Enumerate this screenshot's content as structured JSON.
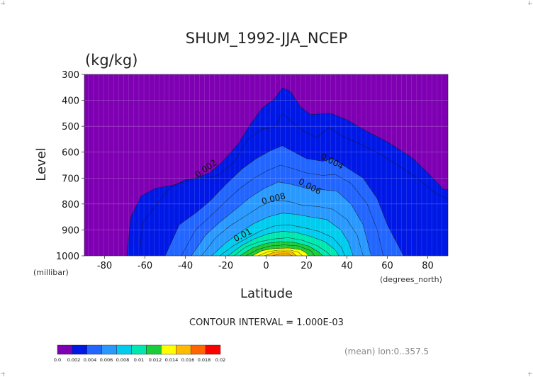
{
  "chart_data": {
    "type": "contour",
    "title": "SHUM_1992-JJA_NCEP",
    "units": "(kg/kg)",
    "xlabel": "Latitude",
    "ylabel": "Level",
    "x_unit_label": "(degrees_north)",
    "y_unit_label": "(millibar)",
    "xlim": [
      -90,
      90
    ],
    "ylim": [
      1000,
      300
    ],
    "x_ticks": [
      "-80",
      "-60",
      "-40",
      "-20",
      "0",
      "20",
      "40",
      "60",
      "80"
    ],
    "y_ticks": [
      "300",
      "400",
      "500",
      "600",
      "700",
      "800",
      "900",
      "1000"
    ],
    "contour_interval_text": "CONTOUR INTERVAL = 1.000E-03",
    "mean_note": "(mean) lon:0..357.5",
    "contour_labels": [
      "0.002",
      "0.004",
      "0.006",
      "0.008",
      "0.01"
    ],
    "colorbar": {
      "tick_labels": [
        "0.0",
        "0.002",
        "0.004",
        "0.006",
        "0.008",
        "0.01",
        "0.012",
        "0.014",
        "0.016",
        "0.018",
        "0.02"
      ],
      "colors": [
        "#7f00b3",
        "#0018e6",
        "#2266ff",
        "#2a99ff",
        "#00ccee",
        "#00e8b0",
        "#1ccd3a",
        "#ffff00",
        "#ffbb00",
        "#ff6600",
        "#ff0000"
      ]
    },
    "levels": [
      0.002,
      0.003,
      0.004,
      0.005,
      0.006,
      0.007,
      0.008,
      0.009,
      0.01,
      0.011,
      0.012,
      0.013,
      0.014,
      0.015,
      0.016,
      0.017
    ],
    "contour_boundaries_p": [
      {
        "level": 0.002,
        "points": [
          [
            -90,
            1000
          ],
          [
            -69,
            1000
          ],
          [
            -67,
            850
          ],
          [
            -62,
            770
          ],
          [
            -55,
            740
          ],
          [
            -45,
            725
          ],
          [
            -40,
            712
          ],
          [
            -35,
            700
          ],
          [
            -28,
            680
          ],
          [
            -22,
            640
          ],
          [
            -14,
            570
          ],
          [
            -8,
            495
          ],
          [
            -2,
            430
          ],
          [
            4,
            395
          ],
          [
            8,
            352
          ],
          [
            12,
            365
          ],
          [
            17,
            425
          ],
          [
            22,
            455
          ],
          [
            32,
            450
          ],
          [
            40,
            475
          ],
          [
            50,
            520
          ],
          [
            60,
            560
          ],
          [
            72,
            620
          ],
          [
            80,
            680
          ],
          [
            88,
            745
          ],
          [
            90,
            745
          ],
          [
            90,
            1000
          ]
        ]
      },
      {
        "level": 0.003,
        "points": [
          [
            -63,
            1000
          ],
          [
            -61,
            870
          ],
          [
            -55,
            810
          ],
          [
            -48,
            740
          ],
          [
            -40,
            705
          ],
          [
            -30,
            700
          ],
          [
            -24,
            690
          ],
          [
            -16,
            640
          ],
          [
            -9,
            550
          ],
          [
            -2,
            510
          ],
          [
            4,
            505
          ],
          [
            8,
            450
          ],
          [
            13,
            485
          ],
          [
            18,
            515
          ],
          [
            25,
            545
          ],
          [
            31,
            505
          ],
          [
            37,
            535
          ],
          [
            47,
            570
          ],
          [
            57,
            610
          ],
          [
            65,
            650
          ],
          [
            74,
            695
          ],
          [
            84,
            760
          ],
          [
            90,
            780
          ],
          [
            90,
            1000
          ]
        ]
      },
      {
        "level": 0.004,
        "points": [
          [
            -50,
            1000
          ],
          [
            -43,
            880
          ],
          [
            -35,
            835
          ],
          [
            -28,
            790
          ],
          [
            -20,
            725
          ],
          [
            -12,
            665
          ],
          [
            -5,
            625
          ],
          [
            2,
            595
          ],
          [
            8,
            575
          ],
          [
            14,
            600
          ],
          [
            20,
            625
          ],
          [
            28,
            635
          ],
          [
            33,
            625
          ],
          [
            40,
            660
          ],
          [
            48,
            700
          ],
          [
            55,
            780
          ],
          [
            60,
            880
          ],
          [
            68,
            1000
          ]
        ]
      },
      {
        "level": 0.005,
        "points": [
          [
            -42,
            1000
          ],
          [
            -35,
            900
          ],
          [
            -28,
            850
          ],
          [
            -20,
            790
          ],
          [
            -13,
            740
          ],
          [
            -6,
            700
          ],
          [
            1,
            670
          ],
          [
            7,
            650
          ],
          [
            14,
            665
          ],
          [
            20,
            680
          ],
          [
            28,
            690
          ],
          [
            34,
            685
          ],
          [
            42,
            720
          ],
          [
            50,
            800
          ],
          [
            55,
            900
          ],
          [
            58,
            1000
          ]
        ]
      },
      {
        "level": 0.006,
        "points": [
          [
            -37,
            1000
          ],
          [
            -30,
            920
          ],
          [
            -23,
            870
          ],
          [
            -15,
            820
          ],
          [
            -8,
            775
          ],
          [
            -1,
            740
          ],
          [
            6,
            715
          ],
          [
            13,
            725
          ],
          [
            20,
            740
          ],
          [
            28,
            745
          ],
          [
            35,
            750
          ],
          [
            42,
            800
          ],
          [
            48,
            880
          ],
          [
            52,
            1000
          ]
        ]
      },
      {
        "level": 0.007,
        "points": [
          [
            -32,
            1000
          ],
          [
            -25,
            930
          ],
          [
            -18,
            885
          ],
          [
            -10,
            845
          ],
          [
            -3,
            810
          ],
          [
            4,
            785
          ],
          [
            11,
            790
          ],
          [
            18,
            805
          ],
          [
            26,
            810
          ],
          [
            33,
            820
          ],
          [
            40,
            860
          ],
          [
            45,
            920
          ],
          [
            48,
            1000
          ]
        ]
      },
      {
        "level": 0.008,
        "points": [
          [
            -27,
            1000
          ],
          [
            -20,
            950
          ],
          [
            -13,
            910
          ],
          [
            -6,
            875
          ],
          [
            1,
            850
          ],
          [
            8,
            835
          ],
          [
            15,
            840
          ],
          [
            22,
            850
          ],
          [
            30,
            860
          ],
          [
            37,
            900
          ],
          [
            41,
            950
          ],
          [
            43,
            1000
          ]
        ]
      },
      {
        "level": 0.009,
        "points": [
          [
            -23,
            1000
          ],
          [
            -16,
            960
          ],
          [
            -9,
            930
          ],
          [
            -3,
            905
          ],
          [
            4,
            885
          ],
          [
            11,
            880
          ],
          [
            18,
            890
          ],
          [
            26,
            905
          ],
          [
            33,
            930
          ],
          [
            37,
            965
          ],
          [
            39,
            1000
          ]
        ]
      },
      {
        "level": 0.01,
        "points": [
          [
            -19,
            1000
          ],
          [
            -12,
            960
          ],
          [
            -6,
            935
          ],
          [
            1,
            915
          ],
          [
            8,
            905
          ],
          [
            15,
            910
          ],
          [
            22,
            925
          ],
          [
            29,
            945
          ],
          [
            34,
            975
          ],
          [
            36,
            1000
          ]
        ]
      },
      {
        "level": 0.011,
        "points": [
          [
            -16,
            1000
          ],
          [
            -10,
            965
          ],
          [
            -3,
            945
          ],
          [
            4,
            935
          ],
          [
            11,
            930
          ],
          [
            18,
            940
          ],
          [
            25,
            960
          ],
          [
            30,
            985
          ],
          [
            32,
            1000
          ]
        ]
      },
      {
        "level": 0.012,
        "points": [
          [
            -13,
            1000
          ],
          [
            -7,
            970
          ],
          [
            0,
            952
          ],
          [
            7,
            945
          ],
          [
            14,
            948
          ],
          [
            21,
            962
          ],
          [
            26,
            985
          ],
          [
            28,
            1000
          ]
        ]
      },
      {
        "level": 0.013,
        "points": [
          [
            -10,
            1000
          ],
          [
            -4,
            975
          ],
          [
            2,
            962
          ],
          [
            9,
            958
          ],
          [
            16,
            962
          ],
          [
            22,
            980
          ],
          [
            24,
            1000
          ]
        ]
      },
      {
        "level": 0.014,
        "points": [
          [
            -7,
            1000
          ],
          [
            -2,
            980
          ],
          [
            4,
            972
          ],
          [
            11,
            970
          ],
          [
            17,
            976
          ],
          [
            20,
            990
          ],
          [
            21,
            1000
          ]
        ]
      },
      {
        "level": 0.015,
        "points": [
          [
            -4,
            1000
          ],
          [
            1,
            984
          ],
          [
            6,
            978
          ],
          [
            12,
            978
          ],
          [
            16,
            986
          ],
          [
            18,
            1000
          ]
        ]
      },
      {
        "level": 0.016,
        "points": [
          [
            -1,
            1000
          ],
          [
            4,
            986
          ],
          [
            9,
            983
          ],
          [
            13,
            986
          ],
          [
            15,
            1000
          ]
        ]
      },
      {
        "level": 0.017,
        "points": [
          [
            3,
            1000
          ],
          [
            7,
            992
          ],
          [
            11,
            992
          ],
          [
            13,
            1000
          ]
        ]
      }
    ]
  }
}
